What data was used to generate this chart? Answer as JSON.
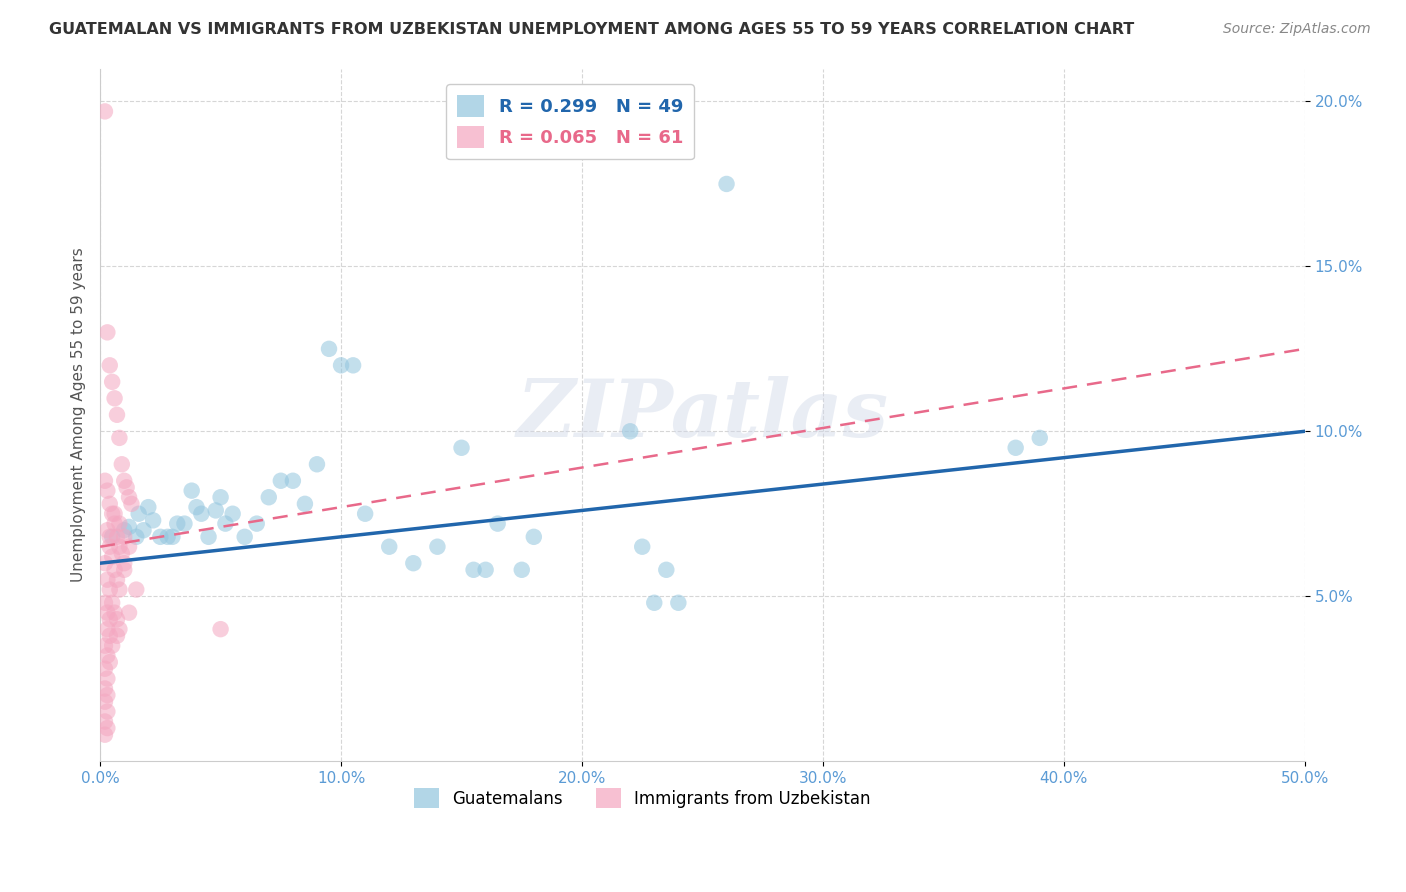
{
  "title": "GUATEMALAN VS IMMIGRANTS FROM UZBEKISTAN UNEMPLOYMENT AMONG AGES 55 TO 59 YEARS CORRELATION CHART",
  "source": "Source: ZipAtlas.com",
  "ylabel": "Unemployment Among Ages 55 to 59 years",
  "xlim": [
    0.0,
    0.5
  ],
  "ylim": [
    0.0,
    0.21
  ],
  "xticks": [
    0.0,
    0.1,
    0.2,
    0.3,
    0.4,
    0.5
  ],
  "xticklabels": [
    "0.0%",
    "10.0%",
    "20.0%",
    "30.0%",
    "40.0%",
    "50.0%"
  ],
  "yticks": [
    0.05,
    0.1,
    0.15,
    0.2
  ],
  "yticklabels": [
    "5.0%",
    "10.0%",
    "15.0%",
    "20.0%"
  ],
  "legend1_R": "0.299",
  "legend1_N": "49",
  "legend2_R": "0.065",
  "legend2_N": "61",
  "color_blue": "#92c5de",
  "color_pink": "#f4a6c0",
  "line_blue": "#2166ac",
  "line_pink": "#e8698a",
  "blue_scatter": [
    [
      0.005,
      0.068
    ],
    [
      0.01,
      0.07
    ],
    [
      0.012,
      0.071
    ],
    [
      0.015,
      0.068
    ],
    [
      0.016,
      0.075
    ],
    [
      0.018,
      0.07
    ],
    [
      0.02,
      0.077
    ],
    [
      0.022,
      0.073
    ],
    [
      0.025,
      0.068
    ],
    [
      0.028,
      0.068
    ],
    [
      0.03,
      0.068
    ],
    [
      0.032,
      0.072
    ],
    [
      0.035,
      0.072
    ],
    [
      0.038,
      0.082
    ],
    [
      0.04,
      0.077
    ],
    [
      0.042,
      0.075
    ],
    [
      0.045,
      0.068
    ],
    [
      0.048,
      0.076
    ],
    [
      0.05,
      0.08
    ],
    [
      0.052,
      0.072
    ],
    [
      0.055,
      0.075
    ],
    [
      0.06,
      0.068
    ],
    [
      0.065,
      0.072
    ],
    [
      0.07,
      0.08
    ],
    [
      0.075,
      0.085
    ],
    [
      0.08,
      0.085
    ],
    [
      0.085,
      0.078
    ],
    [
      0.09,
      0.09
    ],
    [
      0.095,
      0.125
    ],
    [
      0.1,
      0.12
    ],
    [
      0.105,
      0.12
    ],
    [
      0.11,
      0.075
    ],
    [
      0.12,
      0.065
    ],
    [
      0.13,
      0.06
    ],
    [
      0.14,
      0.065
    ],
    [
      0.15,
      0.095
    ],
    [
      0.155,
      0.058
    ],
    [
      0.16,
      0.058
    ],
    [
      0.165,
      0.072
    ],
    [
      0.175,
      0.058
    ],
    [
      0.18,
      0.068
    ],
    [
      0.22,
      0.1
    ],
    [
      0.225,
      0.065
    ],
    [
      0.23,
      0.048
    ],
    [
      0.235,
      0.058
    ],
    [
      0.24,
      0.048
    ],
    [
      0.26,
      0.175
    ],
    [
      0.38,
      0.095
    ],
    [
      0.39,
      0.098
    ]
  ],
  "pink_scatter": [
    [
      0.002,
      0.197
    ],
    [
      0.003,
      0.13
    ],
    [
      0.004,
      0.12
    ],
    [
      0.005,
      0.115
    ],
    [
      0.006,
      0.11
    ],
    [
      0.007,
      0.105
    ],
    [
      0.008,
      0.098
    ],
    [
      0.009,
      0.09
    ],
    [
      0.01,
      0.085
    ],
    [
      0.011,
      0.083
    ],
    [
      0.012,
      0.08
    ],
    [
      0.013,
      0.078
    ],
    [
      0.002,
      0.085
    ],
    [
      0.003,
      0.082
    ],
    [
      0.004,
      0.078
    ],
    [
      0.005,
      0.075
    ],
    [
      0.006,
      0.072
    ],
    [
      0.007,
      0.068
    ],
    [
      0.008,
      0.065
    ],
    [
      0.009,
      0.063
    ],
    [
      0.01,
      0.06
    ],
    [
      0.003,
      0.07
    ],
    [
      0.004,
      0.065
    ],
    [
      0.005,
      0.062
    ],
    [
      0.006,
      0.058
    ],
    [
      0.007,
      0.055
    ],
    [
      0.008,
      0.052
    ],
    [
      0.002,
      0.06
    ],
    [
      0.003,
      0.055
    ],
    [
      0.004,
      0.052
    ],
    [
      0.005,
      0.048
    ],
    [
      0.006,
      0.045
    ],
    [
      0.007,
      0.043
    ],
    [
      0.002,
      0.048
    ],
    [
      0.003,
      0.045
    ],
    [
      0.004,
      0.043
    ],
    [
      0.003,
      0.04
    ],
    [
      0.004,
      0.038
    ],
    [
      0.005,
      0.035
    ],
    [
      0.002,
      0.035
    ],
    [
      0.003,
      0.032
    ],
    [
      0.004,
      0.03
    ],
    [
      0.002,
      0.028
    ],
    [
      0.003,
      0.025
    ],
    [
      0.002,
      0.022
    ],
    [
      0.003,
      0.02
    ],
    [
      0.002,
      0.018
    ],
    [
      0.003,
      0.015
    ],
    [
      0.002,
      0.012
    ],
    [
      0.003,
      0.01
    ],
    [
      0.002,
      0.008
    ],
    [
      0.01,
      0.058
    ],
    [
      0.015,
      0.052
    ],
    [
      0.008,
      0.04
    ],
    [
      0.012,
      0.045
    ],
    [
      0.007,
      0.038
    ],
    [
      0.05,
      0.04
    ],
    [
      0.004,
      0.068
    ],
    [
      0.006,
      0.075
    ],
    [
      0.008,
      0.072
    ],
    [
      0.01,
      0.068
    ],
    [
      0.012,
      0.065
    ]
  ],
  "blue_line_x": [
    0.0,
    0.5
  ],
  "blue_line_y": [
    0.06,
    0.1
  ],
  "pink_line_x": [
    0.0,
    0.5
  ],
  "pink_line_y": [
    0.065,
    0.125
  ],
  "watermark": "ZIPatlas",
  "background_color": "#ffffff",
  "grid_color": "#cccccc"
}
